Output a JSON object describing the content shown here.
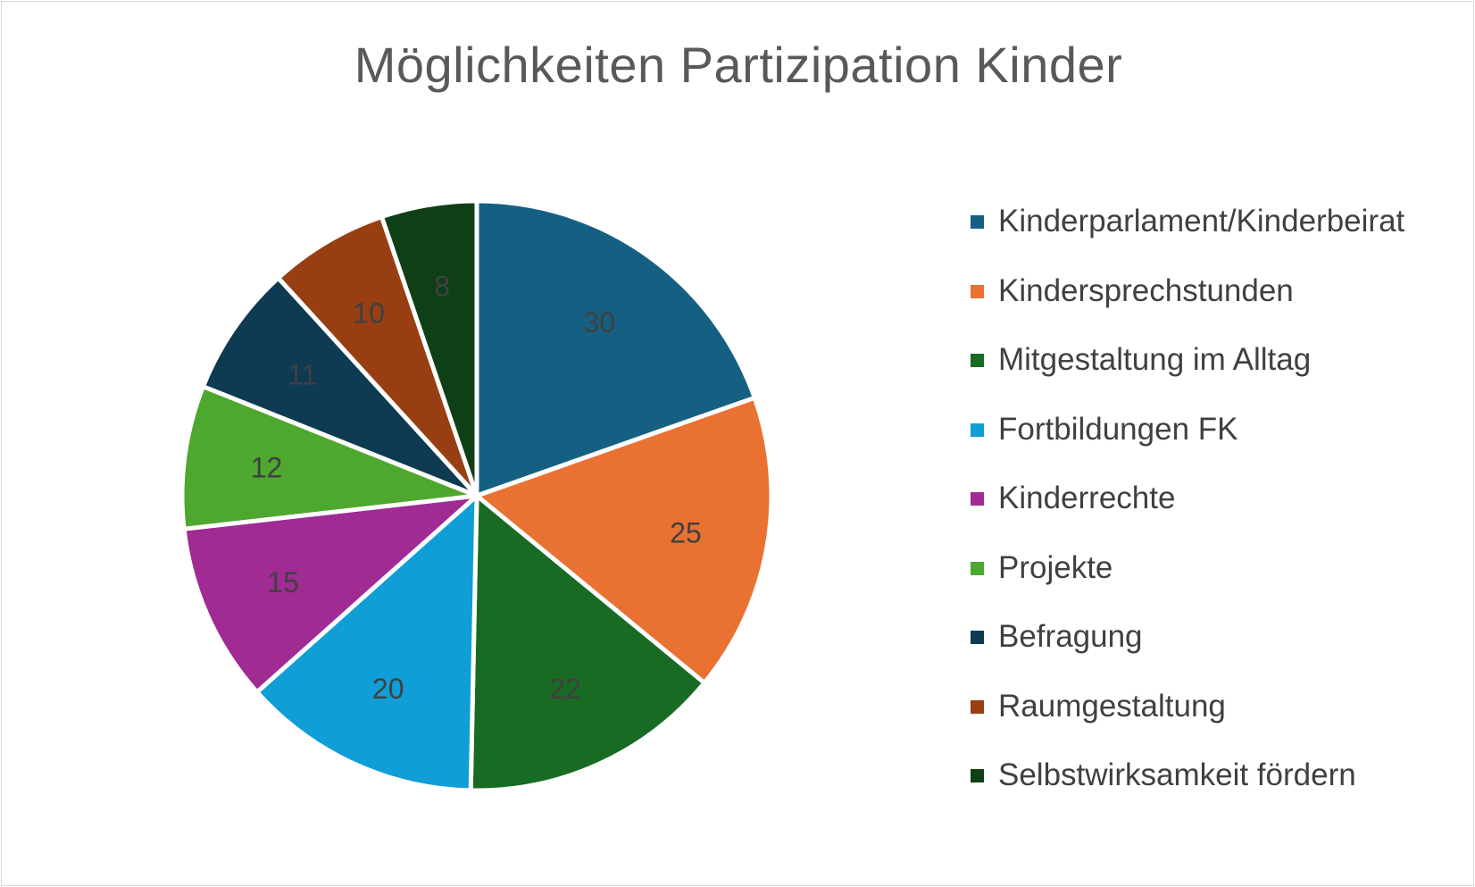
{
  "chart_data": {
    "type": "pie",
    "title": "Möglichkeiten Partizipation Kinder",
    "legend_position": "right",
    "categories": [
      "Kinderparlament/Kinderbeirat",
      "Kindersprechstunden",
      "Mitgestaltung im Alltag",
      "Fortbildungen FK",
      "Kinderrechte",
      "Projekte",
      "Befragung",
      "Raumgestaltung",
      "Selbstwirksamkeit fördern"
    ],
    "values": [
      30,
      25,
      22,
      20,
      15,
      12,
      11,
      10,
      8
    ],
    "data_labels": [
      "30",
      "25",
      "22",
      "20",
      "15",
      "12",
      "11",
      "10",
      "8"
    ],
    "colors": [
      "#156082",
      "#e97132",
      "#196b24",
      "#0f9ed5",
      "#a02b93",
      "#4ea72e",
      "#0e3a52",
      "#973f12",
      "#0f3f17"
    ]
  }
}
